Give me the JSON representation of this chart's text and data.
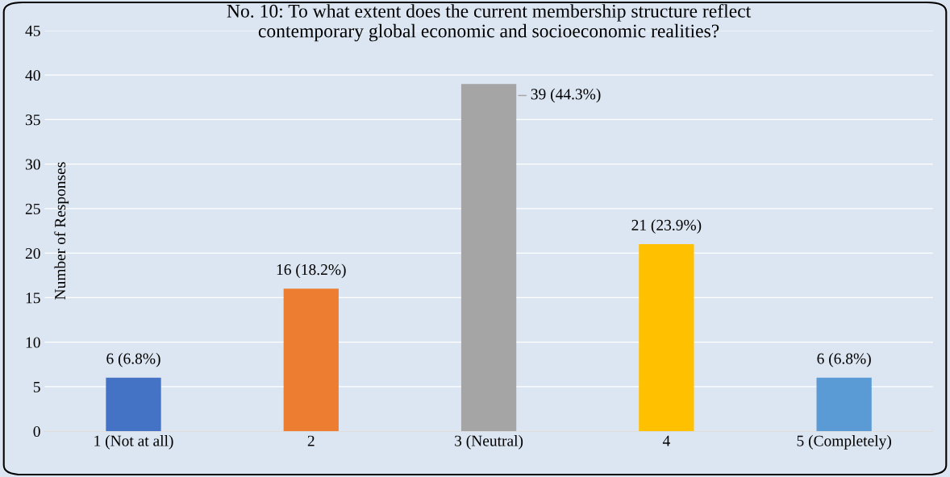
{
  "chart_data": {
    "type": "bar",
    "title": "No. 10: To what extent does the current membership structure reflect\ncontemporary global economic and socioeconomic realities?",
    "ylabel": "Number of Responses",
    "categories": [
      "1 (Not at all)",
      "2",
      "3 (Neutral)",
      "4",
      "5 (Completely)"
    ],
    "values": [
      6,
      16,
      39,
      21,
      6
    ],
    "colors": [
      "#4472c4",
      "#ed7d31",
      "#a5a5a5",
      "#ffc000",
      "#5b9bd5"
    ],
    "value_labels": [
      "6 (6.8%)",
      "16 (18.2%)",
      "39 (44.3%)",
      "21 (23.9%)",
      "6 (6.8%)"
    ],
    "ylim": [
      0,
      45
    ],
    "yticks": [
      0,
      5,
      10,
      15,
      20,
      25,
      30,
      35,
      40,
      45
    ],
    "grid": "y",
    "legend": false
  }
}
